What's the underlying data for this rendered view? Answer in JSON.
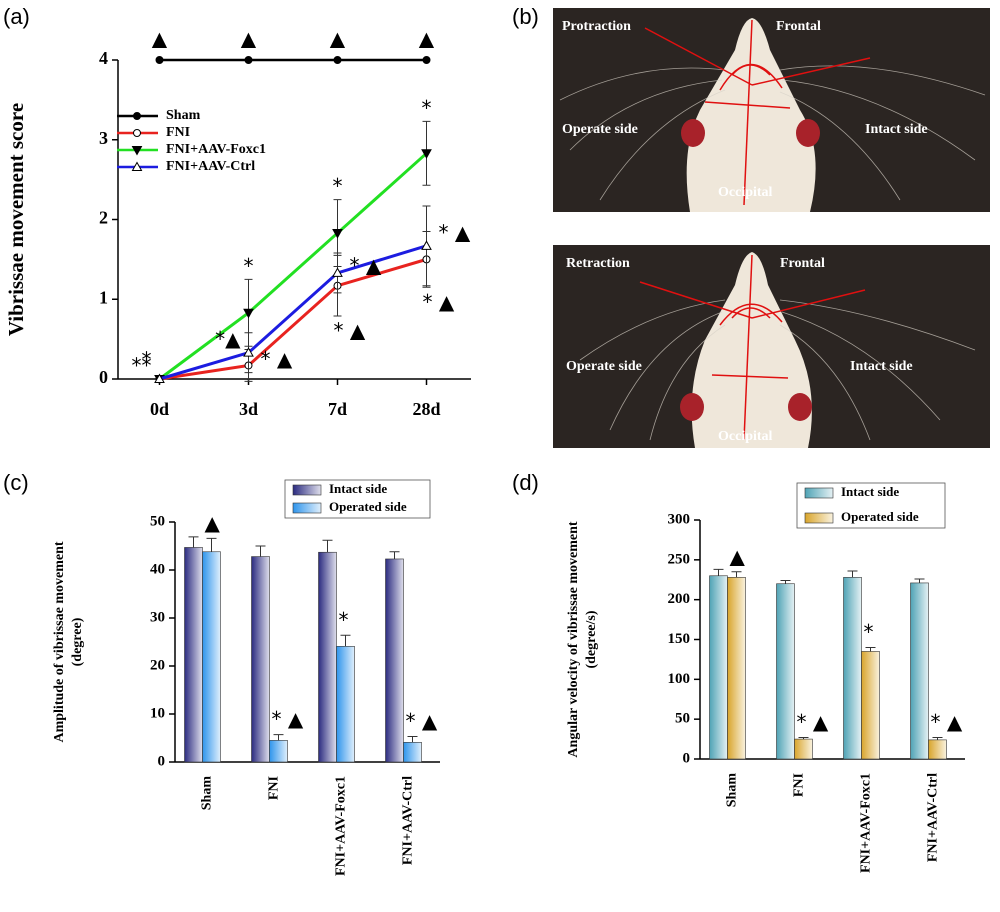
{
  "panels": {
    "labels": [
      "(a)",
      "(b)",
      "(c)",
      "(d)"
    ]
  },
  "photos": [
    {
      "labels": [
        "Protraction",
        "Frontal",
        "Operate side",
        "Intact side",
        "Occipital"
      ]
    },
    {
      "labels": [
        "Retraction",
        "Frontal",
        "Operate side",
        "Intact side",
        "Occipital"
      ]
    }
  ],
  "chart_data": [
    {
      "type": "line",
      "ylabel": [
        "Vibrissae movement score"
      ],
      "categories": [
        "0d",
        "3d",
        "7d",
        "28d"
      ],
      "ylim": [
        0,
        4
      ],
      "yticks": [
        0,
        1,
        2,
        3,
        4
      ],
      "legend": "upper left",
      "series": [
        {
          "name": "Sham",
          "color": "#000000",
          "marker": "circle-filled",
          "values": [
            4,
            4,
            4,
            4
          ]
        },
        {
          "name": "FNI",
          "color": "#e8231f",
          "marker": "circle-open",
          "values": [
            0,
            0.17,
            1.17,
            1.5
          ],
          "errors": [
            0,
            0.2,
            0.38,
            0.35
          ]
        },
        {
          "name": "FNI+AAV-Foxc1",
          "color": "#22e022",
          "marker": "triangle-down",
          "values": [
            0,
            0.83,
            1.83,
            2.83
          ],
          "errors": [
            0,
            0.42,
            0.42,
            0.4
          ]
        },
        {
          "name": "FNI+AAV-Ctrl",
          "color": "#1c1ce0",
          "marker": "triangle-up",
          "values": [
            0,
            0.33,
            1.33,
            1.67
          ],
          "errors": [
            0,
            0.25,
            0.25,
            0.5
          ]
        }
      ],
      "annotations": [
        {
          "text": "▲",
          "series": 0,
          "index": 0,
          "place": "above"
        },
        {
          "text": "▲",
          "series": 0,
          "index": 1,
          "place": "above"
        },
        {
          "text": "▲",
          "series": 0,
          "index": 2,
          "place": "above"
        },
        {
          "text": "▲",
          "series": 0,
          "index": 3,
          "place": "above"
        },
        {
          "text": "**",
          "series": 1,
          "index": 0,
          "place": "left"
        },
        {
          "text": "*",
          "series": 3,
          "index": 0,
          "place": "upleft"
        },
        {
          "text": "*",
          "series": 2,
          "index": 1,
          "place": "above"
        },
        {
          "text": "*▲",
          "series": 3,
          "index": 1,
          "place": "left"
        },
        {
          "text": "* ▲",
          "series": 1,
          "index": 1,
          "place": "right"
        },
        {
          "text": "*",
          "series": 2,
          "index": 2,
          "place": "above"
        },
        {
          "text": "* ▲",
          "series": 3,
          "index": 2,
          "place": "right"
        },
        {
          "text": "* ▲",
          "series": 1,
          "index": 2,
          "place": "below"
        },
        {
          "text": "*",
          "series": 2,
          "index": 3,
          "place": "above"
        },
        {
          "text": "* ▲",
          "series": 3,
          "index": 3,
          "place": "right"
        },
        {
          "text": "* ▲",
          "series": 1,
          "index": 3,
          "place": "below"
        }
      ]
    },
    {
      "type": "bar",
      "ylabel": [
        "Amplitude of vibrissae movement",
        "(degree)"
      ],
      "categories": [
        "Sham",
        "FNI",
        "FNI+AAV-Foxc1",
        "FNI+AAV-Ctrl"
      ],
      "ylim": [
        0,
        50
      ],
      "yticks": [
        0,
        10,
        20,
        30,
        40,
        50
      ],
      "legend": "upper right",
      "series": [
        {
          "name": "Intact side",
          "color": "#2b2b80",
          "values": [
            44.7,
            42.8,
            43.7,
            42.3
          ],
          "errors": [
            2.2,
            2.2,
            2.5,
            1.5
          ]
        },
        {
          "name": "Operated side",
          "color": "#2f95ec",
          "values": [
            43.8,
            4.5,
            24.1,
            4.1
          ],
          "errors": [
            2.8,
            1.2,
            2.3,
            1.2
          ]
        }
      ],
      "annotations": [
        {
          "text": "▲",
          "series": 1,
          "index": 0
        },
        {
          "text": "* ▲",
          "series": 1,
          "index": 1
        },
        {
          "text": "*",
          "series": 1,
          "index": 2
        },
        {
          "text": "* ▲",
          "series": 1,
          "index": 3
        }
      ]
    },
    {
      "type": "bar",
      "ylabel": [
        "Angular velocity of vibrissae movement",
        "(degree/s)"
      ],
      "categories": [
        "Sham",
        "FNI",
        "FNI+AAV-Foxc1",
        "FNI+AAV-Ctrl"
      ],
      "ylim": [
        0,
        300
      ],
      "yticks": [
        0,
        50,
        100,
        150,
        200,
        250,
        300
      ],
      "legend": "upper right",
      "series": [
        {
          "name": "Intact side",
          "color": "#4fa3b5",
          "values": [
            230,
            220,
            228,
            221
          ],
          "errors": [
            8,
            4,
            8,
            5
          ]
        },
        {
          "name": "Operated side",
          "color": "#d9a52c",
          "values": [
            228,
            25,
            135,
            24
          ],
          "errors": [
            7,
            2,
            5,
            3
          ]
        }
      ],
      "annotations": [
        {
          "text": "▲",
          "series": 1,
          "index": 0
        },
        {
          "text": "* ▲",
          "series": 1,
          "index": 1
        },
        {
          "text": "*",
          "series": 1,
          "index": 2
        },
        {
          "text": "* ▲",
          "series": 1,
          "index": 3
        }
      ]
    }
  ]
}
